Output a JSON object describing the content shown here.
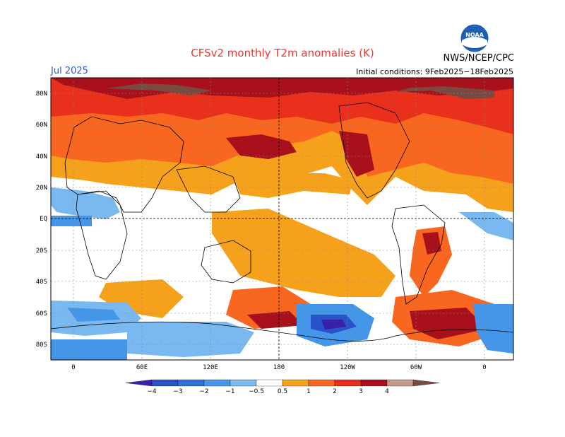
{
  "header": {
    "title": "CFSv2 monthly T2m anomalies (K)",
    "month": "Jul 2025",
    "initial_conditions": "Initial conditions: 9Feb2025−18Feb2025",
    "agency": "NWS/NCEP/CPC",
    "logo_text": "NOAA"
  },
  "map": {
    "lat_labels": [
      "80N",
      "60N",
      "40N",
      "20N",
      "EQ",
      "20S",
      "40S",
      "60S",
      "80S"
    ],
    "lon_labels": [
      "0",
      "60E",
      "120E",
      "180",
      "120W",
      "60W",
      "0"
    ]
  },
  "colorbar": {
    "ticks": [
      "−4",
      "−3",
      "−2",
      "−1",
      "−0.5",
      "0.5",
      "1",
      "2",
      "3",
      "4"
    ],
    "colors": [
      "#3a1fa8",
      "#2a52c8",
      "#2f73d8",
      "#4496e8",
      "#7ab8f0",
      "#ffffff",
      "#f5a11c",
      "#f86620",
      "#e8301c",
      "#a8101c",
      "#c49a8a",
      "#7a4a42"
    ]
  }
}
